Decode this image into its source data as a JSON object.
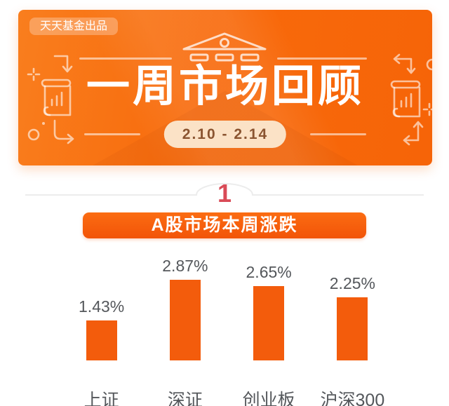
{
  "banner": {
    "publisher_tag": "天天基金出品",
    "title": "一周市场回顾",
    "date_range": "2.10 - 2.14",
    "colors": {
      "banner_orange": "#f8690b",
      "pill_bg": "#fbe2c6",
      "pill_text": "#8a5430",
      "decoration_stroke": "rgba(255,255,255,0.6)"
    },
    "icons": {
      "bank": "classical-bank-building-outline",
      "scroll_chart": "scroll-with-bar-chart-outline",
      "turn_arrow_down": "corner-arrow-down",
      "turn_arrow_up": "corner-arrow-up",
      "sparkle": "plus-sparkle",
      "circle": "small-circle-outline"
    }
  },
  "section": {
    "index": "1",
    "index_color": "#d94b57",
    "heading": "A股市场本周涨跌",
    "heading_bg": "#f25a08"
  },
  "chart_data": {
    "type": "bar",
    "title": "A股市场本周涨跌",
    "categories": [
      "上证",
      "深证",
      "创业板",
      "沪深300"
    ],
    "values": [
      1.43,
      2.87,
      2.65,
      2.25
    ],
    "value_labels": [
      "1.43%",
      "2.87%",
      "2.65%",
      "2.25%"
    ],
    "unit": "%",
    "bar_color": "#f35c0c",
    "label_color": "#54575b",
    "ylim": [
      0,
      3
    ],
    "grid": false,
    "legend": false
  }
}
